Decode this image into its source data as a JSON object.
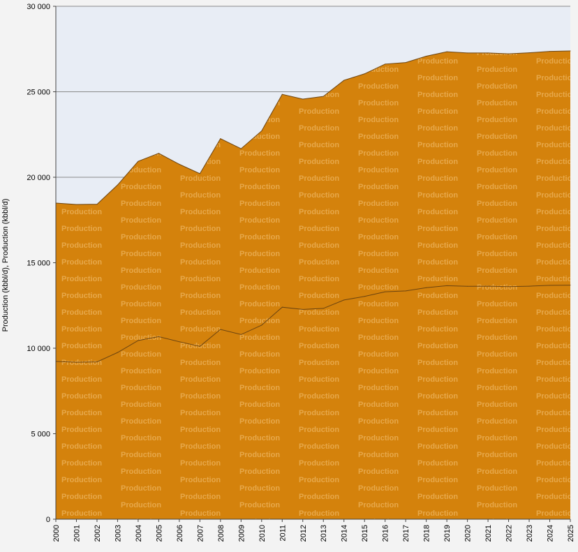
{
  "chart_data": {
    "type": "area",
    "stacked": true,
    "ylabel": "Production (kbbl/d), Production (kbbl/d)",
    "xlabel": "",
    "title": "",
    "ylim": [
      0,
      30000
    ],
    "y_ticks": [
      "0",
      "5 000",
      "10 000",
      "15 000",
      "20 000",
      "25 000",
      "30 000"
    ],
    "y_tick_values": [
      0,
      5000,
      10000,
      15000,
      20000,
      25000,
      30000
    ],
    "x": [
      "2000",
      "2001",
      "2002",
      "2003",
      "2004",
      "2005",
      "2006",
      "2007",
      "2008",
      "2009",
      "2010",
      "2011",
      "2012",
      "2013",
      "2014",
      "2015",
      "2016",
      "2017",
      "2018",
      "2019",
      "2020",
      "2021",
      "2022",
      "2023",
      "2024",
      "2025"
    ],
    "grid": "horizontal",
    "series": [
      {
        "name": "Production",
        "values": [
          9230,
          9180,
          9200,
          9750,
          10450,
          10680,
          10380,
          10110,
          11100,
          10800,
          11350,
          12400,
          12270,
          12330,
          12820,
          13030,
          13300,
          13350,
          13540,
          13660,
          13620,
          13630,
          13600,
          13630,
          13680,
          13690
        ]
      },
      {
        "name": "Production",
        "values": [
          9260,
          9230,
          9220,
          9800,
          10480,
          10720,
          10380,
          10100,
          11160,
          10870,
          11360,
          12450,
          12300,
          12400,
          12850,
          13020,
          13320,
          13360,
          13540,
          13680,
          13650,
          13640,
          13620,
          13650,
          13680,
          13700
        ]
      }
    ],
    "colors": {
      "fill": "#d4820c",
      "line": "#6b4310",
      "plot_background": "#e8edf5",
      "gridline": "#8a8a8a",
      "watermark": "#e7a84a"
    }
  }
}
